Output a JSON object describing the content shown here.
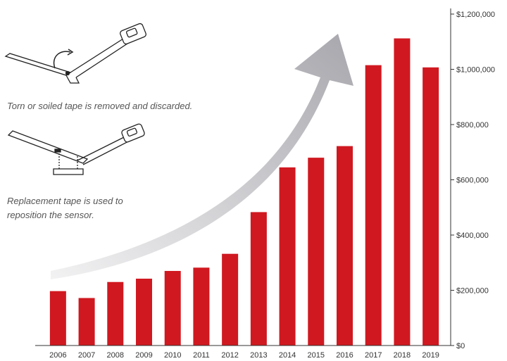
{
  "captions": {
    "torn": "Torn or soiled tape is removed and discarded.",
    "replace_line1": "Replacement tape is used to",
    "replace_line2": "reposition the sensor."
  },
  "colors": {
    "bar": "#d01820",
    "arrow": "#b8b8bd",
    "axis": "#333333"
  },
  "icons": [
    "sensor-tape-removal-illustration",
    "sensor-tape-replacement-illustration"
  ],
  "chart_data": {
    "type": "bar",
    "categories": [
      "2006",
      "2007",
      "2008",
      "2009",
      "2010",
      "2011",
      "2012",
      "2013",
      "2014",
      "2015",
      "2016",
      "2017",
      "2018",
      "2019"
    ],
    "values": [
      197000,
      172000,
      230000,
      242000,
      270000,
      282000,
      332000,
      483000,
      645000,
      680000,
      722000,
      1015000,
      1112000,
      1007000
    ],
    "ylim": [
      0,
      1200000
    ],
    "y_ticks": [
      0,
      200000,
      400000,
      600000,
      800000,
      1000000,
      1200000
    ],
    "y_tick_labels": [
      "$0",
      "$200,000",
      "$400,000",
      "$600,000",
      "$800,000",
      "$1,000,000",
      "$1,200,000"
    ],
    "y_axis_position": "right",
    "grid": false,
    "legend": "none",
    "title": "",
    "xlabel": "",
    "ylabel": ""
  }
}
